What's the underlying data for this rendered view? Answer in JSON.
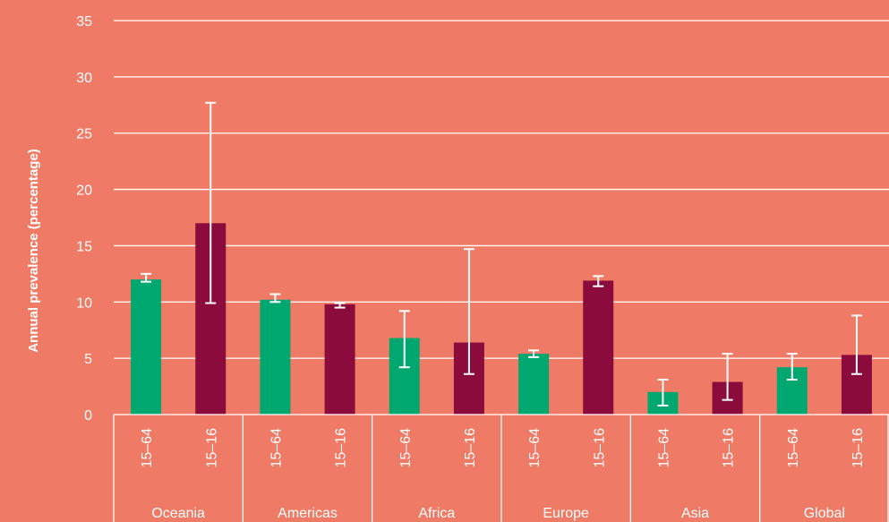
{
  "chart_data": {
    "type": "bar",
    "ylabel": "Annual prevalence (percentage)",
    "ylim": [
      0,
      35
    ],
    "yticks": [
      "0",
      "5",
      "10",
      "15",
      "20",
      "25",
      "30",
      "35"
    ],
    "grid": true,
    "sub_categories": [
      "15–64",
      "15–16"
    ],
    "groups": [
      {
        "region": "Oceania",
        "bars": [
          {
            "label": "15–64",
            "value": 12.0,
            "err_low": 11.8,
            "err_high": 12.5
          },
          {
            "label": "15–16",
            "value": 17.0,
            "err_low": 9.9,
            "err_high": 27.7
          }
        ]
      },
      {
        "region": "Americas",
        "bars": [
          {
            "label": "15–64",
            "value": 10.2,
            "err_low": 10.0,
            "err_high": 10.7
          },
          {
            "label": "15–16",
            "value": 9.8,
            "err_low": 9.5,
            "err_high": 9.9
          }
        ]
      },
      {
        "region": "Africa",
        "bars": [
          {
            "label": "15–64",
            "value": 6.8,
            "err_low": 4.2,
            "err_high": 9.2
          },
          {
            "label": "15–16",
            "value": 6.4,
            "err_low": 3.6,
            "err_high": 14.7
          }
        ]
      },
      {
        "region": "Europe",
        "bars": [
          {
            "label": "15–64",
            "value": 5.4,
            "err_low": 5.1,
            "err_high": 5.7
          },
          {
            "label": "15–16",
            "value": 11.9,
            "err_low": 11.4,
            "err_high": 12.3
          }
        ]
      },
      {
        "region": "Asia",
        "bars": [
          {
            "label": "15–64",
            "value": 2.0,
            "err_low": 0.8,
            "err_high": 3.1
          },
          {
            "label": "15–16",
            "value": 2.9,
            "err_low": 1.3,
            "err_high": 5.4
          }
        ]
      },
      {
        "region": "Global",
        "bars": [
          {
            "label": "15–64",
            "value": 4.2,
            "err_low": 3.1,
            "err_high": 5.4
          },
          {
            "label": "15–16",
            "value": 5.3,
            "err_low": 3.6,
            "err_high": 8.8
          }
        ]
      }
    ],
    "colors": {
      "background": "#ef7b66",
      "adult": "#00a870",
      "youth": "#8b0b3c",
      "gridline": "#ffffff",
      "text": "#ffffff"
    }
  }
}
